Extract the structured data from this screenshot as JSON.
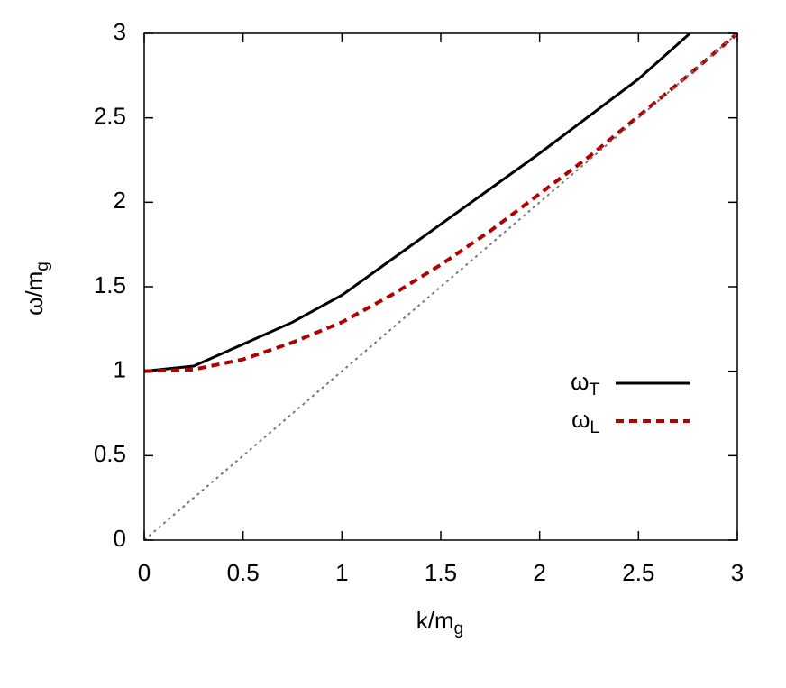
{
  "chart_data": {
    "type": "line",
    "xlabel": "k/mg",
    "ylabel": "ω/mg",
    "xlim": [
      0,
      3
    ],
    "ylim": [
      0,
      3
    ],
    "xticks": [
      0,
      0.5,
      1,
      1.5,
      2,
      2.5,
      3
    ],
    "yticks": [
      0,
      0.5,
      1,
      1.5,
      2,
      2.5,
      3
    ],
    "legend": "right",
    "series": [
      {
        "name": "ωT",
        "color": "#000000",
        "style": "solid",
        "x": [
          0,
          0.25,
          0.5,
          0.75,
          1,
          1.25,
          1.5,
          1.75,
          2,
          2.25,
          2.5,
          2.76
        ],
        "values": [
          1,
          1.03,
          1.16,
          1.29,
          1.45,
          1.66,
          1.87,
          2.08,
          2.29,
          2.51,
          2.73,
          3.0
        ]
      },
      {
        "name": "ωL",
        "color": "#b00000",
        "style": "dashed",
        "x": [
          0,
          0.25,
          0.5,
          0.75,
          1,
          1.25,
          1.5,
          1.75,
          2,
          2.25,
          2.5,
          2.75,
          3
        ],
        "values": [
          1,
          1.01,
          1.07,
          1.17,
          1.29,
          1.45,
          1.63,
          1.83,
          2.05,
          2.27,
          2.51,
          2.75,
          3.0
        ]
      },
      {
        "color": "#777777",
        "style": "dotted",
        "x": [
          0,
          3
        ],
        "values": [
          0,
          3
        ]
      }
    ]
  }
}
